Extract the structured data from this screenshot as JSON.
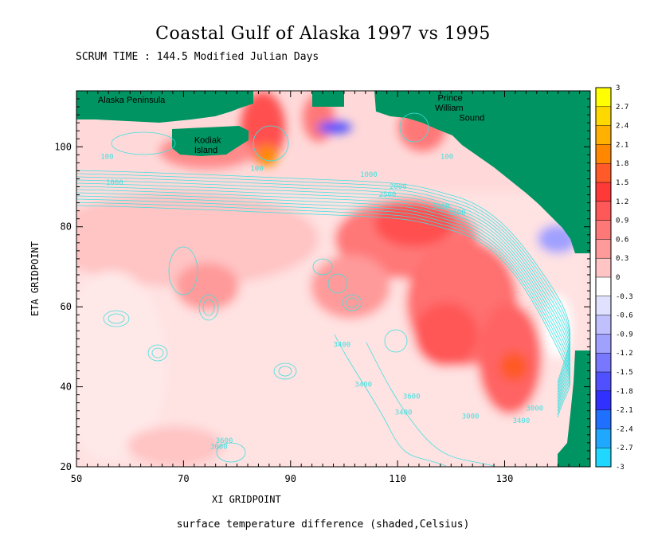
{
  "chart_data": {
    "type": "heatmap",
    "title": "Coastal Gulf of Alaska 1997 vs 1995",
    "subtitle": "SCRUM TIME : 144.5 Modified Julian Days",
    "xlabel": "XI GRIDPOINT",
    "ylabel": "ETA GRIDPOINT",
    "caption": "surface temperature difference (shaded,Celsius)",
    "xlim": [
      50,
      146
    ],
    "ylim": [
      20,
      114
    ],
    "x_ticks": [
      50,
      70,
      90,
      110,
      130
    ],
    "y_ticks": [
      20,
      40,
      60,
      80,
      100
    ],
    "colorbar": {
      "levels": [
        "3",
        "2.7",
        "2.4",
        "2.1",
        "1.8",
        "1.5",
        "1.2",
        "0.9",
        "0.6",
        "0.3",
        "0",
        "-0.3",
        "-0.6",
        "-0.9",
        "-1.2",
        "-1.5",
        "-1.8",
        "-2.1",
        "-2.4",
        "-2.7",
        "-3"
      ],
      "colors": [
        "#ffff00",
        "#ffd800",
        "#ffb000",
        "#ff8800",
        "#ff5a28",
        "#ff3838",
        "#ff5858",
        "#ff7878",
        "#ff9a9a",
        "#ffc4c4",
        "#ffffff",
        "#e0e0ff",
        "#c0c0ff",
        "#a0a0ff",
        "#7878ff",
        "#5050ff",
        "#3030ff",
        "#2070ff",
        "#20a8ff",
        "#20d8ff"
      ]
    },
    "land_color": "#009463",
    "contour_color": "#40e0e0",
    "annotations": [
      {
        "text": "Alaska Peninsula",
        "x": 54,
        "y": 111
      },
      {
        "text": "Kodiak",
        "x": 72,
        "y": 101
      },
      {
        "text": "Island",
        "x": 72,
        "y": 98.5
      },
      {
        "text": "Prince",
        "x": 117.5,
        "y": 111.5
      },
      {
        "text": "William",
        "x": 117,
        "y": 109
      },
      {
        "text": "Sound",
        "x": 121.5,
        "y": 106.5
      }
    ],
    "contour_labels": [
      {
        "text": "100",
        "x": 82.5,
        "y": 94
      },
      {
        "text": "1000",
        "x": 103,
        "y": 92.5
      },
      {
        "text": "2000",
        "x": 108.5,
        "y": 89.5
      },
      {
        "text": "2500",
        "x": 106.5,
        "y": 87.5
      },
      {
        "text": "1000",
        "x": 55.5,
        "y": 90.5
      },
      {
        "text": "100",
        "x": 54.5,
        "y": 97
      },
      {
        "text": "100",
        "x": 118,
        "y": 97
      },
      {
        "text": "3000",
        "x": 116.5,
        "y": 84.5
      },
      {
        "text": "3600",
        "x": 119.5,
        "y": 83
      },
      {
        "text": "3400",
        "x": 98,
        "y": 50
      },
      {
        "text": "3400",
        "x": 102,
        "y": 40
      },
      {
        "text": "3600",
        "x": 111,
        "y": 37
      },
      {
        "text": "3400",
        "x": 109.5,
        "y": 33
      },
      {
        "text": "3000",
        "x": 122,
        "y": 32
      },
      {
        "text": "3400",
        "x": 131.5,
        "y": 31
      },
      {
        "text": "3000",
        "x": 134,
        "y": 34
      },
      {
        "text": "3600",
        "x": 76,
        "y": 26
      },
      {
        "text": "3000",
        "x": 75,
        "y": 24.5
      }
    ]
  }
}
